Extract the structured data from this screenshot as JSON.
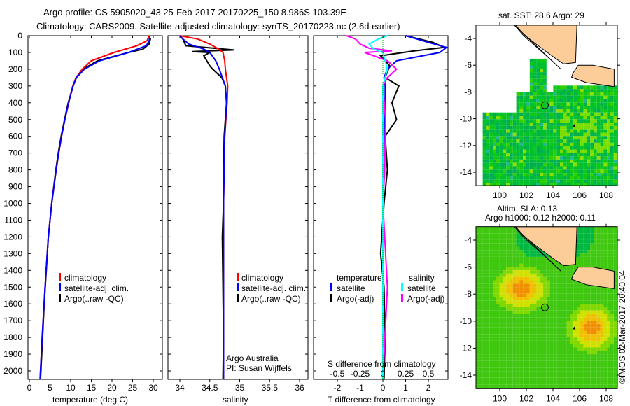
{
  "title_line1": "Argo profile: CS 5905020_43 25-Feb-2017 20170225_150 8.986S 103.39E",
  "title_line2": "Climatology: CARS2009. Satellite-adjusted climatology: synTS_20170223.nc (2.6d earlier)",
  "copyright": "©IMOS 02-Mar-2017 20:40:04",
  "colors": {
    "climatology": "#ff0000",
    "satellite": "#0000ff",
    "argo": "#000000",
    "sal_sat": "#00ffff",
    "sal_argo": "#ff00ff",
    "land": "#fccc99"
  },
  "chart_data": [
    {
      "type": "line",
      "name": "temperature",
      "xlabel": "temperature (deg C)",
      "xlim": [
        -1,
        31
      ],
      "ylim": [
        2050,
        0
      ],
      "xticks": [
        "0",
        "5",
        "10",
        "15",
        "20",
        "25",
        "30"
      ],
      "yticks": [
        "0",
        "100",
        "200",
        "300",
        "400",
        "500",
        "600",
        "700",
        "800",
        "900",
        "1000",
        "1100",
        "1200",
        "1300",
        "1400",
        "1500",
        "1600",
        "1700",
        "1800",
        "1900",
        "2000"
      ],
      "legend": [
        "climatology",
        "satellite-adj. clim.",
        "Argo(..raw -QC)"
      ],
      "series": [
        {
          "name": "climatology",
          "depth": [
            0,
            30,
            60,
            100,
            150,
            200,
            250,
            300,
            400,
            500,
            600,
            700,
            800,
            1000,
            1200,
            1500,
            1800,
            2050
          ],
          "values": [
            29,
            28.5,
            26,
            20.5,
            15,
            12.8,
            11.3,
            10.5,
            9.5,
            8.6,
            7.8,
            7.1,
            6.5,
            5.4,
            4.6,
            3.8,
            3.1,
            2.6
          ]
        },
        {
          "name": "satellite-adj. clim.",
          "depth": [
            0,
            30,
            60,
            100,
            150,
            200,
            250,
            300,
            400,
            500,
            600,
            700,
            800,
            1000,
            1200,
            1500,
            1800,
            2050
          ],
          "values": [
            29.2,
            29,
            28.3,
            24,
            17,
            13.3,
            11.4,
            10.6,
            9.5,
            8.6,
            7.8,
            7.1,
            6.5,
            5.4,
            4.6,
            3.8,
            3.1,
            2.6
          ]
        },
        {
          "name": "Argo",
          "depth": [
            0,
            20,
            50,
            80,
            100,
            150,
            200,
            250,
            300,
            400,
            500,
            600,
            700,
            800,
            1000,
            1200,
            1400,
            1600,
            1800,
            2050
          ],
          "values": [
            29,
            29.3,
            29,
            27.5,
            24,
            16.5,
            13,
            11.3,
            10.6,
            9.4,
            8.5,
            7.7,
            7,
            6.4,
            5.4,
            4.6,
            4.1,
            3.6,
            3.2,
            2.7
          ]
        }
      ]
    },
    {
      "type": "line",
      "name": "salinity",
      "xlabel": "salinity",
      "xlim": [
        33.8,
        36.1
      ],
      "ylim": [
        2050,
        0
      ],
      "xticks": [
        "34",
        "34.5",
        "35",
        "35.5",
        "36"
      ],
      "legend": [
        "climatology",
        "satellite-adj. clim.",
        "Argo(..raw -QC)"
      ],
      "annotation": [
        "Argo Australia",
        "PI: Susan Wijffels"
      ],
      "series": [
        {
          "name": "climatology",
          "depth": [
            0,
            20,
            50,
            80,
            100,
            150,
            200,
            300,
            400,
            600,
            800,
            1000,
            1500,
            2050
          ],
          "values": [
            34.0,
            34.3,
            34.5,
            34.65,
            34.72,
            34.75,
            34.76,
            34.8,
            34.79,
            34.75,
            34.74,
            34.73,
            34.73,
            34.73
          ]
        },
        {
          "name": "satellite-adj. clim.",
          "depth": [
            0,
            20,
            50,
            80,
            100,
            150,
            200,
            300,
            400,
            600,
            800,
            1000,
            1500,
            2050
          ],
          "values": [
            34.0,
            34.05,
            34.15,
            34.4,
            34.5,
            34.6,
            34.66,
            34.76,
            34.78,
            34.75,
            34.74,
            34.73,
            34.73,
            34.73
          ]
        },
        {
          "name": "Argo",
          "depth": [
            0,
            20,
            60,
            85,
            95,
            100,
            120,
            150,
            180,
            200,
            250,
            300,
            400,
            600,
            800,
            1000,
            1200,
            1500,
            1800,
            2050
          ],
          "values": [
            34.0,
            34.05,
            34.1,
            34.9,
            34.2,
            34.5,
            34.4,
            34.45,
            34.5,
            34.55,
            34.7,
            34.76,
            34.78,
            34.74,
            34.73,
            34.73,
            34.71,
            34.72,
            34.73,
            34.72
          ]
        }
      ]
    },
    {
      "type": "line",
      "name": "difference",
      "xlabel": "T difference from climatology",
      "xlabel2": "S difference from climatology",
      "xlim": [
        -2.9,
        2.9
      ],
      "ylim": [
        2050,
        0
      ],
      "xticks": [
        "-2",
        "-1",
        "0",
        "1",
        "2"
      ],
      "xticks2": [
        "-0.5",
        "-0.25",
        "0",
        "0.25",
        "0.5"
      ],
      "legend_titles": [
        "temperature",
        "salinity"
      ],
      "legend": [
        "satellite",
        "Argo(-adj)",
        "satellite",
        "Argo(-adj)"
      ],
      "series": [
        {
          "name": "T satellite",
          "depth": [
            0,
            40,
            70,
            100,
            150,
            200,
            250,
            300,
            400,
            600,
            1000,
            2050
          ],
          "values": [
            1,
            2,
            2.8,
            2.5,
            0.6,
            0.2,
            0.05,
            0.1,
            0.1,
            0.05,
            0,
            0
          ]
        },
        {
          "name": "T Argo(-adj)",
          "depth": [
            0,
            40,
            70,
            90,
            120,
            180,
            250,
            300,
            400,
            500,
            600,
            800,
            1000,
            1300,
            1500,
            1800,
            2050
          ],
          "values": [
            1.0,
            2.2,
            2.7,
            1.4,
            -0.1,
            0.3,
            0.1,
            0.7,
            0.4,
            0.6,
            0.1,
            0.2,
            0.05,
            -0.1,
            0.05,
            0.1,
            0.05
          ]
        },
        {
          "name": "S satellite",
          "depth": [
            0,
            20,
            50,
            80,
            100,
            200,
            300,
            500,
            1000,
            2050
          ],
          "values": [
            0.05,
            -0.05,
            -0.15,
            -0.1,
            0,
            0.05,
            0,
            0,
            0,
            0
          ]
        },
        {
          "name": "S Argo(-adj)",
          "depth": [
            0,
            20,
            50,
            75,
            90,
            100,
            150,
            200,
            250,
            300,
            500,
            800,
            1000,
            1500,
            2050
          ],
          "values": [
            -0.4,
            -0.3,
            -0.25,
            -0.15,
            0.1,
            -0.2,
            0.05,
            0.15,
            0.05,
            0,
            0.03,
            0.02,
            0,
            0.05,
            0
          ]
        }
      ]
    },
    {
      "type": "heatmap",
      "name": "sst_map",
      "title": "sat. SST: 28.6 Argo: 29",
      "xticks": [
        "100",
        "102",
        "104",
        "106",
        "108"
      ],
      "yticks": [
        "-4",
        "-6",
        "-8",
        "-10",
        "-12",
        "-14"
      ],
      "float_lon": 103.39,
      "float_lat": -8.986
    },
    {
      "type": "heatmap",
      "name": "sla_map",
      "title": "Altim. SLA: 0.13",
      "subtitle": "Argo h1000: 0.12 h2000: 0.11",
      "xticks": [
        "100",
        "102",
        "104",
        "106",
        "108"
      ],
      "yticks": [
        "-4",
        "-6",
        "-8",
        "-10",
        "-12",
        "-14"
      ],
      "float_lon": 103.39,
      "float_lat": -8.986
    }
  ]
}
